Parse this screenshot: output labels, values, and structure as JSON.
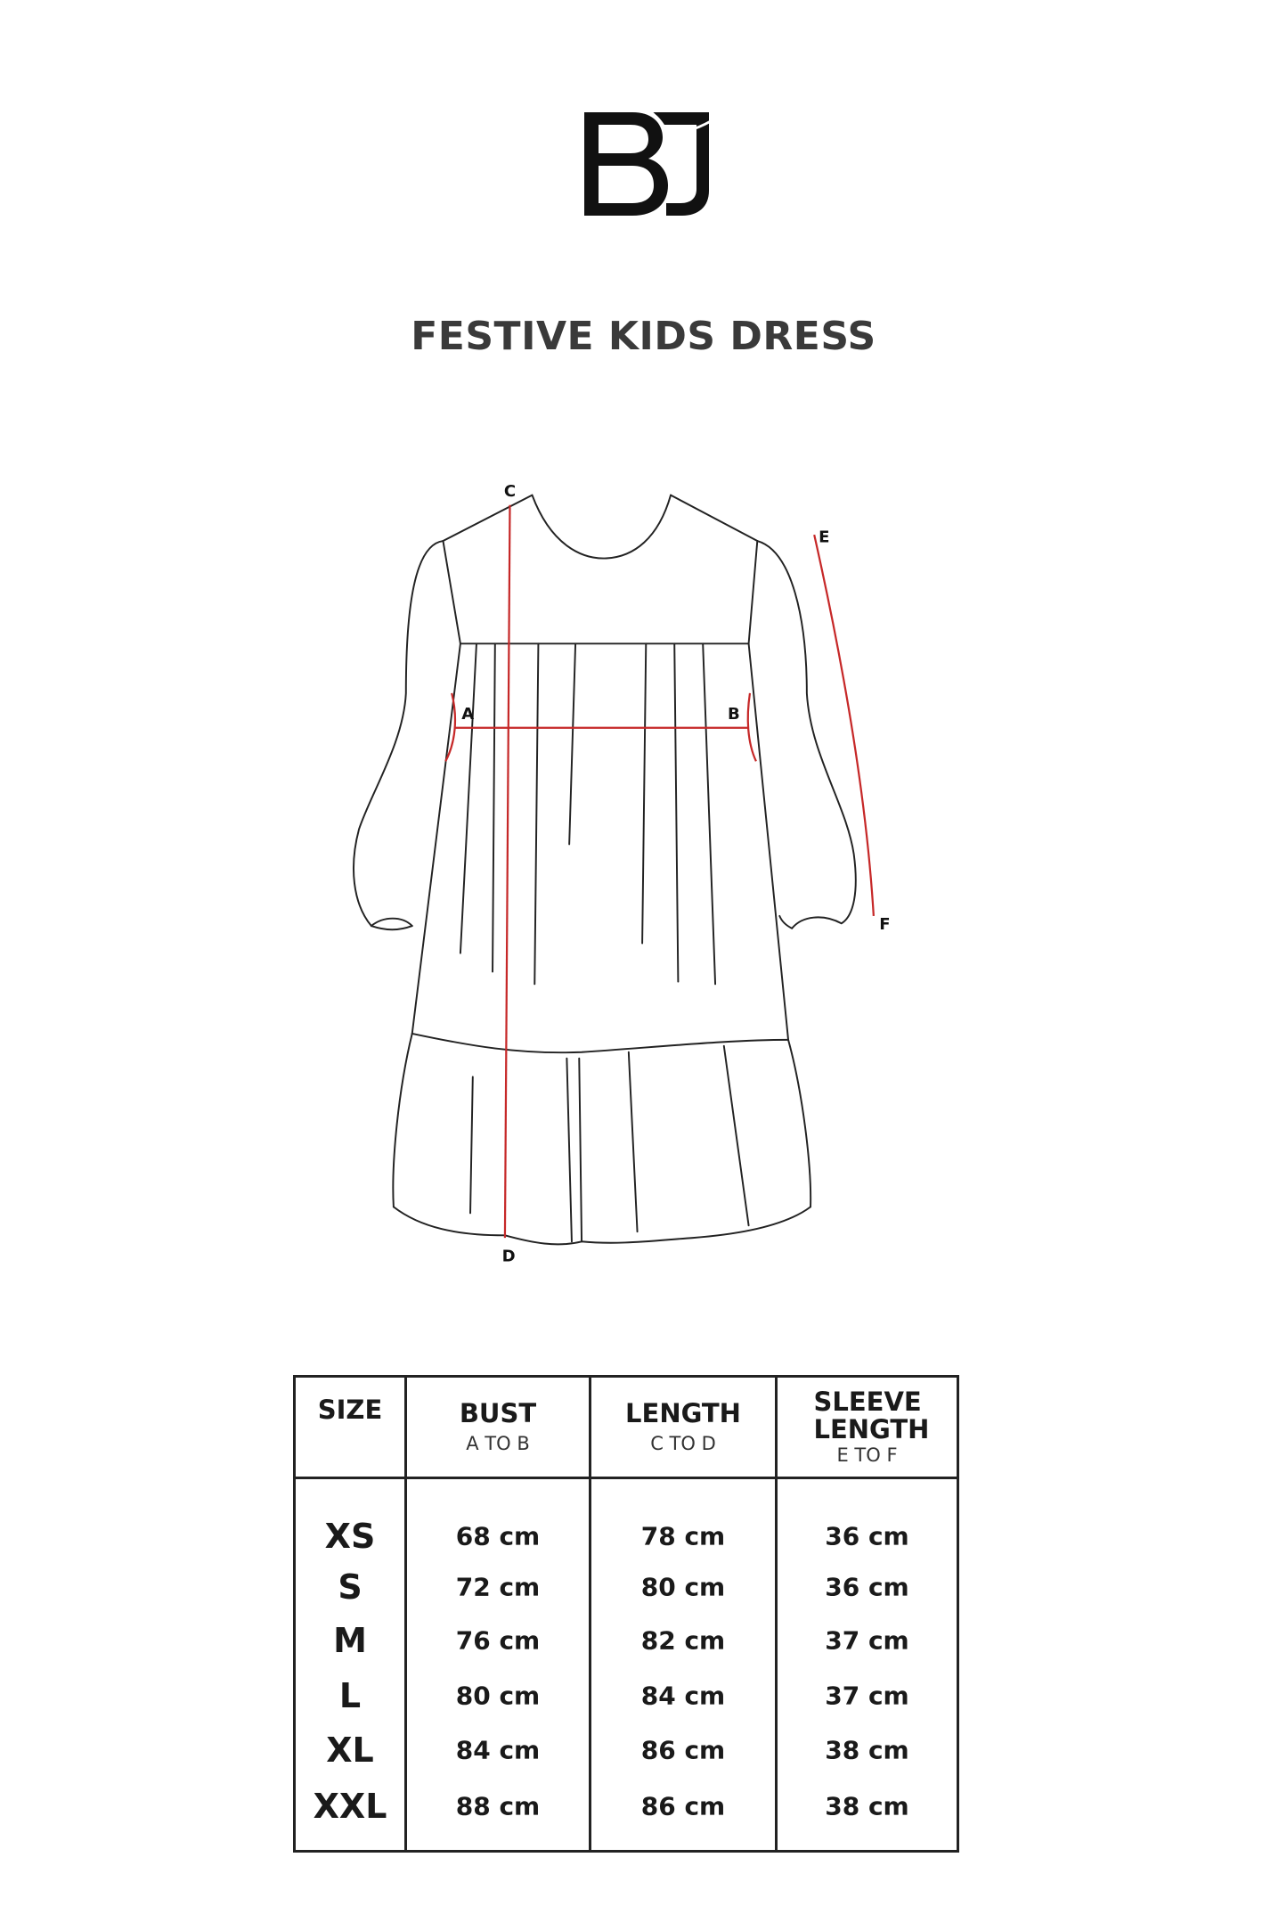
{
  "brand": {
    "logo_text": "BJ"
  },
  "title": "FESTIVE KIDS DRESS",
  "diagram": {
    "labels": {
      "a": "A",
      "b": "B",
      "c": "C",
      "d": "D",
      "e": "E",
      "f": "F"
    },
    "measure_color": "#c62828"
  },
  "table": {
    "headers": [
      {
        "main": "SIZE",
        "sub": ""
      },
      {
        "main": "BUST",
        "sub": "A TO B"
      },
      {
        "main": "LENGTH",
        "sub": "C TO D"
      },
      {
        "main": "SLEEVE LENGTH",
        "sub": "E TO F"
      }
    ],
    "rows": [
      {
        "size": "XS",
        "bust": "68 cm",
        "length": "78 cm",
        "sleeve": "36 cm"
      },
      {
        "size": "S",
        "bust": "72 cm",
        "length": "80 cm",
        "sleeve": "36 cm"
      },
      {
        "size": "M",
        "bust": "76 cm",
        "length": "82 cm",
        "sleeve": "37 cm"
      },
      {
        "size": "L",
        "bust": "80 cm",
        "length": "84 cm",
        "sleeve": "37 cm"
      },
      {
        "size": "XL",
        "bust": "84 cm",
        "length": "86 cm",
        "sleeve": "38 cm"
      },
      {
        "size": "XXL",
        "bust": "88 cm",
        "length": "86 cm",
        "sleeve": "38 cm"
      }
    ]
  }
}
